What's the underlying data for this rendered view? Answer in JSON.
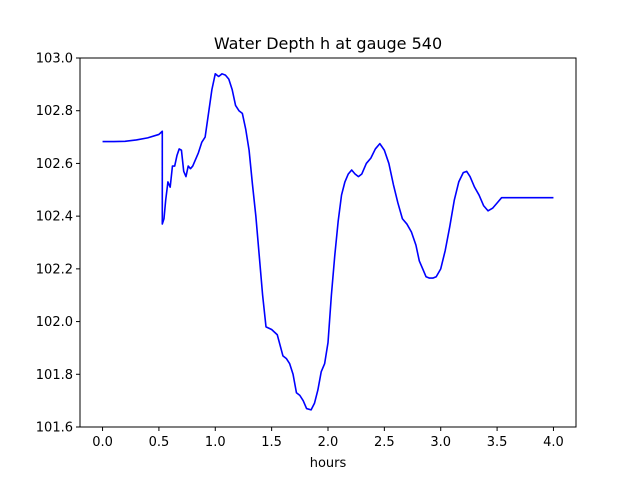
{
  "chart_data": {
    "type": "line",
    "title": "Water Depth h at gauge 540",
    "xlabel": "hours",
    "ylabel": "",
    "xlim": [
      -0.2,
      4.2
    ],
    "ylim": [
      101.6,
      103.0
    ],
    "xticks": [
      0.0,
      0.5,
      1.0,
      1.5,
      2.0,
      2.5,
      3.0,
      3.5,
      4.0
    ],
    "xtick_labels": [
      "0.0",
      "0.5",
      "1.0",
      "1.5",
      "2.0",
      "2.5",
      "3.0",
      "3.5",
      "4.0"
    ],
    "yticks": [
      101.6,
      101.8,
      102.0,
      102.2,
      102.4,
      102.6,
      102.8,
      103.0
    ],
    "ytick_labels": [
      "101.6",
      "101.8",
      "102.0",
      "102.2",
      "102.4",
      "102.6",
      "102.8",
      "103.0"
    ],
    "grid": false,
    "series": [
      {
        "color": "#0000ff",
        "x": [
          0.0,
          0.1,
          0.2,
          0.3,
          0.4,
          0.5,
          0.53,
          0.53,
          0.545,
          0.56,
          0.58,
          0.6,
          0.62,
          0.64,
          0.66,
          0.68,
          0.7,
          0.72,
          0.74,
          0.76,
          0.78,
          0.8,
          0.82,
          0.85,
          0.88,
          0.91,
          0.94,
          0.97,
          1.0,
          1.03,
          1.06,
          1.09,
          1.12,
          1.15,
          1.18,
          1.21,
          1.24,
          1.27,
          1.3,
          1.33,
          1.36,
          1.39,
          1.42,
          1.45,
          1.5,
          1.55,
          1.6,
          1.63,
          1.66,
          1.69,
          1.72,
          1.75,
          1.78,
          1.81,
          1.85,
          1.88,
          1.91,
          1.94,
          1.97,
          2.0,
          2.03,
          2.06,
          2.09,
          2.12,
          2.15,
          2.18,
          2.21,
          2.24,
          2.27,
          2.3,
          2.34,
          2.38,
          2.42,
          2.46,
          2.5,
          2.54,
          2.58,
          2.62,
          2.66,
          2.7,
          2.74,
          2.78,
          2.81,
          2.84,
          2.87,
          2.9,
          2.93,
          2.96,
          3.0,
          3.04,
          3.08,
          3.12,
          3.16,
          3.2,
          3.23,
          3.26,
          3.3,
          3.34,
          3.38,
          3.42,
          3.46,
          3.5,
          3.54,
          3.58,
          3.62,
          3.66,
          3.7,
          3.74,
          3.78,
          3.82,
          3.86,
          3.9,
          3.94,
          3.98,
          4.0
        ],
        "y": [
          102.683,
          102.683,
          102.684,
          102.689,
          102.697,
          102.71,
          102.722,
          102.37,
          102.39,
          102.46,
          102.53,
          102.51,
          102.59,
          102.59,
          102.63,
          102.655,
          102.65,
          102.57,
          102.55,
          102.59,
          102.58,
          102.59,
          102.61,
          102.64,
          102.68,
          102.7,
          102.79,
          102.88,
          102.94,
          102.93,
          102.94,
          102.935,
          102.92,
          102.88,
          102.82,
          102.8,
          102.79,
          102.73,
          102.65,
          102.52,
          102.4,
          102.25,
          102.1,
          101.98,
          101.97,
          101.95,
          101.87,
          101.86,
          101.84,
          101.8,
          101.73,
          101.72,
          101.7,
          101.67,
          101.665,
          101.69,
          101.74,
          101.81,
          101.84,
          101.92,
          102.1,
          102.25,
          102.38,
          102.48,
          102.53,
          102.56,
          102.575,
          102.56,
          102.55,
          102.56,
          102.6,
          102.62,
          102.655,
          102.675,
          102.65,
          102.6,
          102.52,
          102.45,
          102.39,
          102.37,
          102.34,
          102.29,
          102.23,
          102.2,
          102.17,
          102.165,
          102.165,
          102.17,
          102.2,
          102.27,
          102.36,
          102.46,
          102.53,
          102.565,
          102.57,
          102.55,
          102.51,
          102.48,
          102.44,
          102.42,
          102.43,
          102.45,
          102.47,
          102.47,
          102.47,
          102.47,
          102.47,
          102.47,
          102.47,
          102.47,
          102.47,
          102.47,
          102.47,
          102.47,
          102.47
        ]
      }
    ]
  }
}
